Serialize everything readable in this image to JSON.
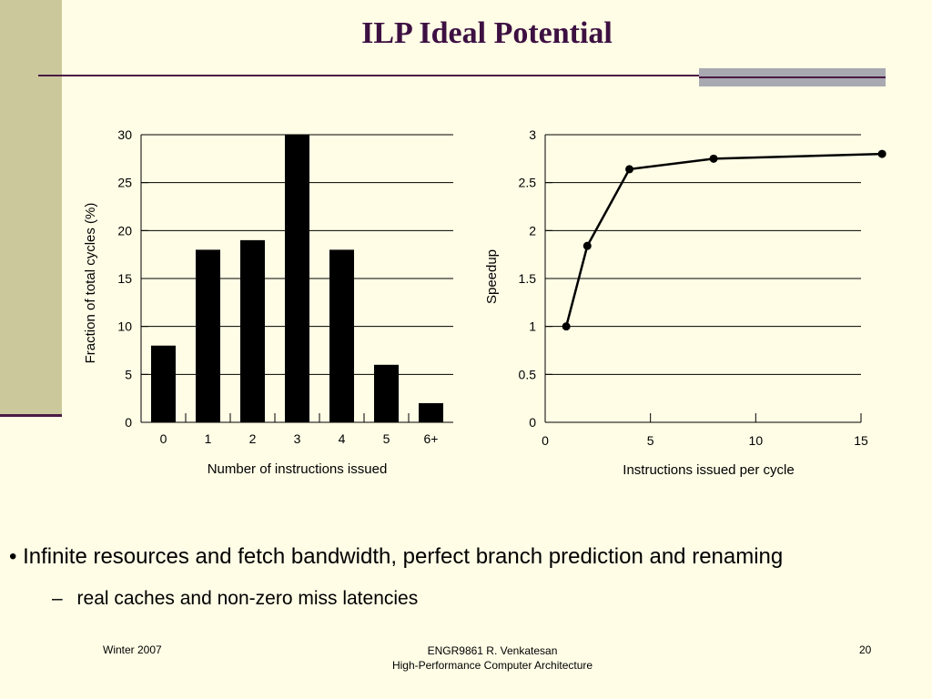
{
  "slide": {
    "title": "ILP Ideal Potential",
    "bullets": {
      "main_marker": "•",
      "main": "Infinite resources and fetch bandwidth, perfect branch prediction and renaming",
      "sub_marker": "–",
      "sub": "real caches and non-zero miss latencies"
    },
    "footer": {
      "left": "Winter 2007",
      "center_line1": "ENGR9861    R. Venkatesan",
      "center_line2": "High-Performance Computer Architecture",
      "page": "20"
    }
  },
  "chart_data": [
    {
      "type": "bar",
      "categories": [
        "0",
        "1",
        "2",
        "3",
        "4",
        "5",
        "6+"
      ],
      "values": [
        8,
        18,
        19,
        30,
        18,
        6,
        2
      ],
      "xlabel": "Number of instructions issued",
      "ylabel": "Fraction of total cycles (%)",
      "ylim": [
        0,
        30
      ],
      "yticks": [
        0,
        5,
        10,
        15,
        20,
        25,
        30
      ],
      "grid": true,
      "color": "#000000"
    },
    {
      "type": "line",
      "x": [
        1,
        2,
        4,
        8,
        16
      ],
      "y": [
        1.0,
        1.84,
        2.64,
        2.75,
        2.8
      ],
      "xlabel": "Instructions issued per cycle",
      "ylabel": "Speedup",
      "xlim": [
        0,
        15
      ],
      "ylim": [
        0,
        3
      ],
      "xticks": [
        0,
        5,
        10,
        15
      ],
      "yticks": [
        0,
        0.5,
        1,
        1.5,
        2,
        2.5,
        3
      ],
      "yticklabels": [
        "0",
        "0.5",
        "1",
        "1.5",
        "2",
        "2.5",
        "3"
      ],
      "grid": true,
      "color": "#000000"
    }
  ]
}
